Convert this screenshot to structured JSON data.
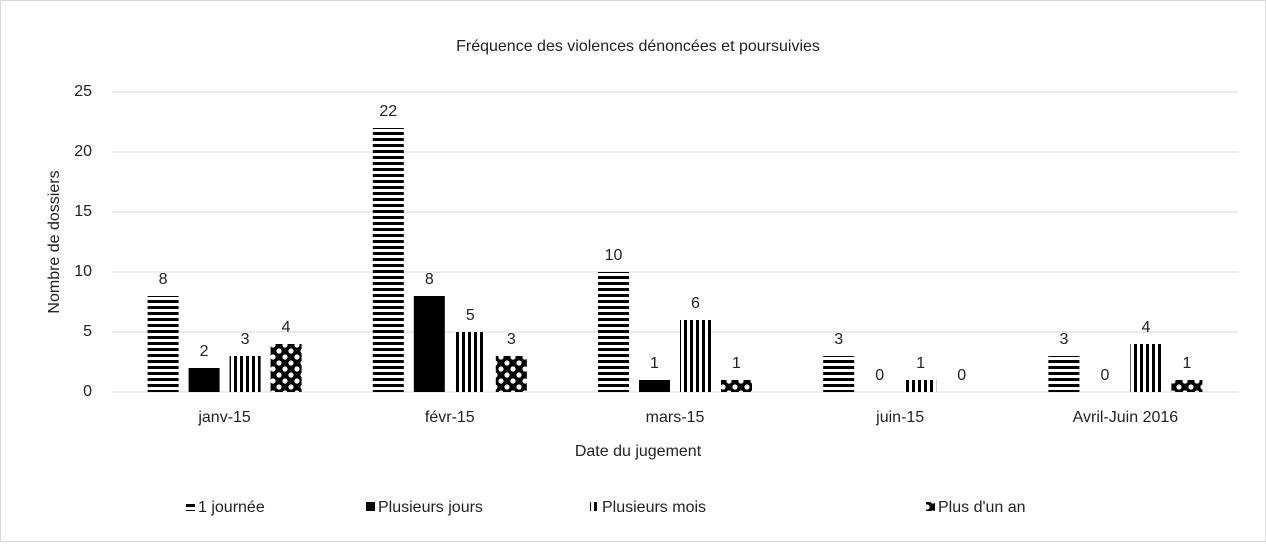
{
  "chart_data": {
    "type": "bar",
    "title": "Fréquence des violences dénoncées et poursuivies",
    "x_label": "Date du jugement",
    "y_label": "Nombre de dossiers",
    "categories": [
      "janv-15",
      "févr-15",
      "mars-15",
      "juin-15",
      "Avril-Juin 2016"
    ],
    "series": [
      {
        "name": "1 journée",
        "color": "#000000",
        "values": [
          8,
          22,
          10,
          3,
          3
        ]
      },
      {
        "name": "Plusieurs jours",
        "color": "#000000",
        "values": [
          2,
          8,
          1,
          0,
          0
        ]
      },
      {
        "name": "Plusieurs mois",
        "color": "#000000",
        "values": [
          3,
          5,
          6,
          1,
          4
        ]
      },
      {
        "name": "Plus d'un an",
        "color": "#000000",
        "values": [
          4,
          3,
          1,
          0,
          1
        ]
      }
    ],
    "ylim": [
      0,
      25
    ],
    "yticks": [
      0,
      5,
      10,
      15,
      20,
      25
    ],
    "grid": true,
    "legend": "bottom"
  }
}
